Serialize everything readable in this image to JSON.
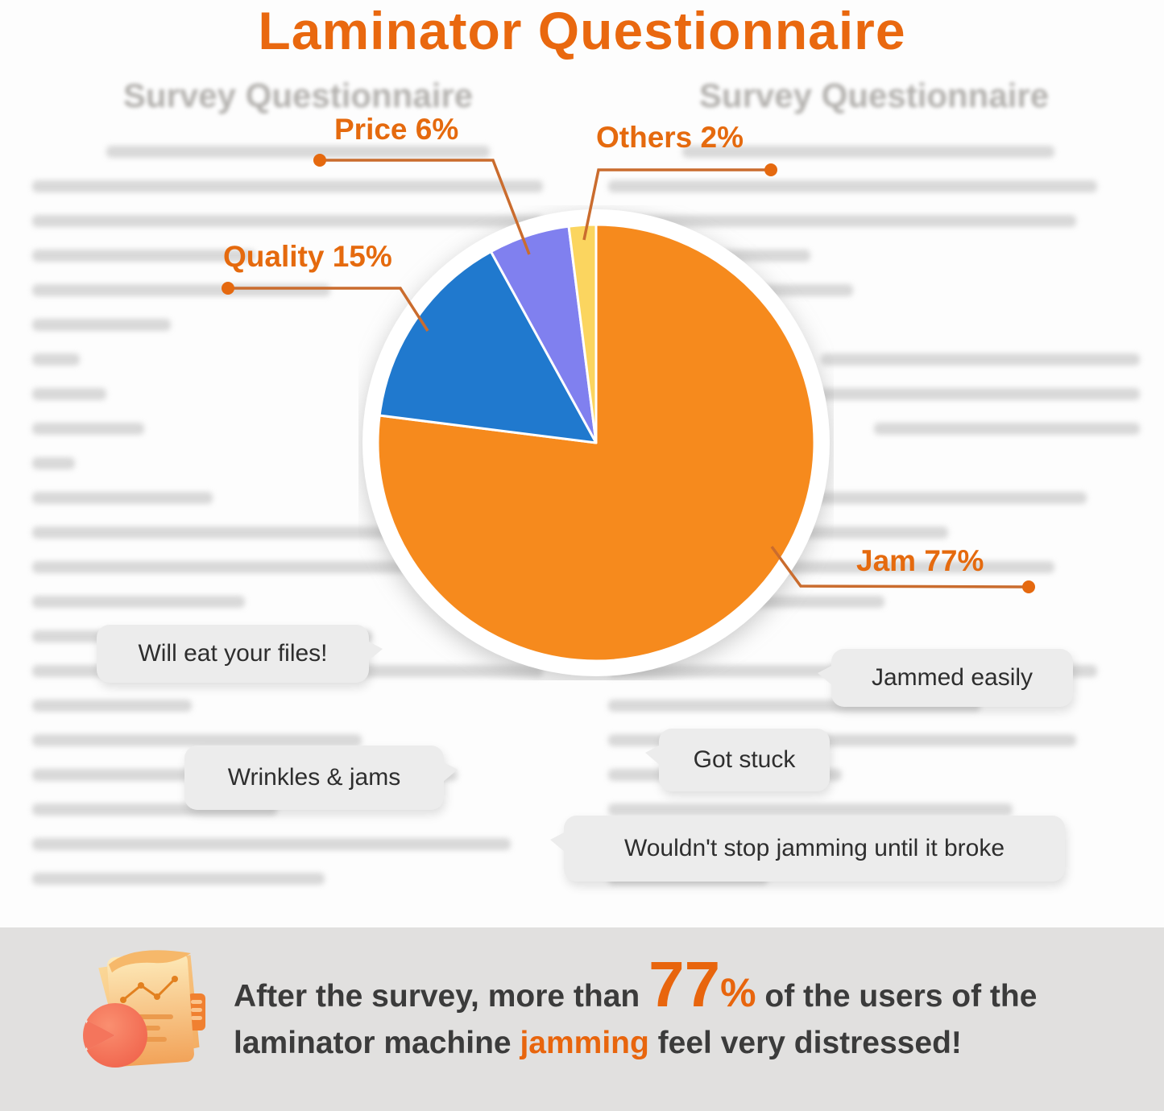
{
  "title": "Laminator Questionnaire",
  "documents": {
    "heading": "Survey Questionnaire"
  },
  "chart_data": {
    "type": "pie",
    "title": "Laminator Questionnaire",
    "start": "12 o'clock, clockwise",
    "slices": [
      {
        "label": "Jam",
        "value": 77,
        "color": "#F68A1D",
        "callout": "Jam 77%"
      },
      {
        "label": "Quality",
        "value": 15,
        "color": "#2079CE",
        "callout": "Quality 15%"
      },
      {
        "label": "Price",
        "value": 6,
        "color": "#8080EF",
        "callout": "Price 6%"
      },
      {
        "label": "Others",
        "value": 2,
        "color": "#FBD55F",
        "callout": "Others 2%"
      }
    ],
    "legend_position": "callout labels with leader lines"
  },
  "quotes": [
    "Will eat your files!",
    "Jammed easily",
    "Got stuck",
    "Wrinkles & jams",
    "Wouldn't stop jamming until it broke"
  ],
  "banner": {
    "line1_before": "After the survey, more than",
    "big_number": "77",
    "percent_sign": "%",
    "line1_after": "of the users of the",
    "line2_before": "laminator machine",
    "highlight": "jamming",
    "line2_after": "feel very distressed!"
  },
  "colors": {
    "title_orange": "#e9680f",
    "callout_orange": "#e56a0e",
    "leader_line": "#ca6c2e",
    "bubble_bg": "#ececec",
    "banner_bg": "#e1e0df",
    "banner_text": "#3b3b3b",
    "banner_accent": "#e8650d"
  }
}
